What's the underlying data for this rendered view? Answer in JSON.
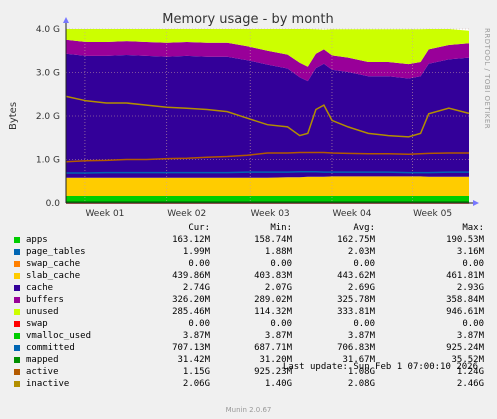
{
  "chart_data": {
    "type": "area",
    "title": "Memory usage - by month",
    "ylabel": "Bytes",
    "side_label": "RRDTOOL / TOBI OETIKER",
    "x_ticks": [
      "Week 01",
      "Week 02",
      "Week 03",
      "Week 04",
      "Week 05"
    ],
    "y_ticks": [
      "0.0",
      "1.0 G",
      "2.0 G",
      "3.0 G",
      "4.0 G"
    ],
    "ylim": [
      0,
      4.0
    ],
    "grid": true,
    "x": [
      0,
      0.05,
      0.1,
      0.15,
      0.2,
      0.25,
      0.3,
      0.35,
      0.4,
      0.45,
      0.5,
      0.55,
      0.58,
      0.6,
      0.62,
      0.64,
      0.66,
      0.7,
      0.75,
      0.8,
      0.85,
      0.88,
      0.9,
      0.95,
      1.0
    ],
    "stack": [
      {
        "name": "apps",
        "color": "#00cc00",
        "values": [
          0.16,
          0.16,
          0.16,
          0.16,
          0.16,
          0.16,
          0.16,
          0.16,
          0.16,
          0.16,
          0.16,
          0.16,
          0.16,
          0.16,
          0.16,
          0.16,
          0.16,
          0.16,
          0.16,
          0.16,
          0.16,
          0.16,
          0.16,
          0.16,
          0.16
        ]
      },
      {
        "name": "page_tables",
        "color": "#0066b3",
        "values": [
          0.002,
          0.002,
          0.002,
          0.002,
          0.002,
          0.002,
          0.002,
          0.002,
          0.002,
          0.002,
          0.002,
          0.002,
          0.002,
          0.002,
          0.002,
          0.002,
          0.002,
          0.002,
          0.002,
          0.002,
          0.002,
          0.002,
          0.002,
          0.002,
          0.002
        ]
      },
      {
        "name": "swap_cache",
        "color": "#ff8000",
        "values": [
          0,
          0,
          0,
          0,
          0,
          0,
          0,
          0,
          0,
          0,
          0,
          0,
          0,
          0,
          0,
          0,
          0,
          0,
          0,
          0,
          0,
          0,
          0,
          0,
          0
        ]
      },
      {
        "name": "slab_cache",
        "color": "#ffcc00",
        "values": [
          0.42,
          0.42,
          0.42,
          0.42,
          0.42,
          0.42,
          0.42,
          0.42,
          0.42,
          0.42,
          0.42,
          0.43,
          0.43,
          0.44,
          0.44,
          0.44,
          0.45,
          0.45,
          0.45,
          0.45,
          0.45,
          0.45,
          0.44,
          0.44,
          0.44
        ]
      },
      {
        "name": "cache",
        "color": "#330099",
        "values": [
          2.85,
          2.8,
          2.8,
          2.82,
          2.8,
          2.78,
          2.8,
          2.78,
          2.78,
          2.7,
          2.6,
          2.5,
          2.3,
          2.2,
          2.5,
          2.6,
          2.45,
          2.4,
          2.3,
          2.3,
          2.25,
          2.3,
          2.6,
          2.7,
          2.74
        ]
      },
      {
        "name": "buffers",
        "color": "#990099",
        "values": [
          0.32,
          0.32,
          0.32,
          0.32,
          0.32,
          0.32,
          0.32,
          0.32,
          0.32,
          0.32,
          0.32,
          0.32,
          0.33,
          0.33,
          0.33,
          0.33,
          0.33,
          0.33,
          0.33,
          0.33,
          0.33,
          0.33,
          0.33,
          0.33,
          0.33
        ]
      },
      {
        "name": "unused",
        "color": "#ccff00",
        "values": [
          0.25,
          0.3,
          0.3,
          0.28,
          0.3,
          0.32,
          0.3,
          0.32,
          0.32,
          0.4,
          0.5,
          0.59,
          0.78,
          0.87,
          0.56,
          0.45,
          0.6,
          0.65,
          0.75,
          0.75,
          0.8,
          0.75,
          0.47,
          0.37,
          0.29
        ]
      }
    ],
    "lines": [
      {
        "name": "swap",
        "color": "#ff0000",
        "values": [
          0,
          0,
          0,
          0,
          0,
          0,
          0,
          0,
          0,
          0,
          0,
          0,
          0,
          0,
          0,
          0,
          0,
          0,
          0,
          0,
          0,
          0,
          0,
          0,
          0
        ]
      },
      {
        "name": "vmalloc_used",
        "color": "#00cc00",
        "values": [
          0.004,
          0.004,
          0.004,
          0.004,
          0.004,
          0.004,
          0.004,
          0.004,
          0.004,
          0.004,
          0.004,
          0.004,
          0.004,
          0.004,
          0.004,
          0.004,
          0.004,
          0.004,
          0.004,
          0.004,
          0.004,
          0.004,
          0.004,
          0.004,
          0.004
        ]
      },
      {
        "name": "committed",
        "color": "#0066b3",
        "values": [
          0.69,
          0.69,
          0.7,
          0.7,
          0.7,
          0.7,
          0.7,
          0.7,
          0.7,
          0.71,
          0.71,
          0.71,
          0.72,
          0.72,
          0.72,
          0.71,
          0.71,
          0.71,
          0.71,
          0.71,
          0.7,
          0.7,
          0.7,
          0.71,
          0.71
        ]
      },
      {
        "name": "mapped",
        "color": "#008f00",
        "values": [
          0.031,
          0.031,
          0.031,
          0.031,
          0.031,
          0.031,
          0.031,
          0.031,
          0.031,
          0.031,
          0.031,
          0.031,
          0.031,
          0.031,
          0.031,
          0.031,
          0.031,
          0.031,
          0.031,
          0.031,
          0.031,
          0.031,
          0.031,
          0.031,
          0.031
        ]
      },
      {
        "name": "active",
        "color": "#b35a00",
        "values": [
          0.95,
          0.97,
          0.98,
          1.0,
          1.0,
          1.02,
          1.03,
          1.05,
          1.07,
          1.1,
          1.15,
          1.15,
          1.16,
          1.16,
          1.16,
          1.16,
          1.15,
          1.14,
          1.13,
          1.13,
          1.12,
          1.13,
          1.14,
          1.15,
          1.15
        ]
      },
      {
        "name": "inactive",
        "color": "#b38f00",
        "values": [
          2.45,
          2.35,
          2.3,
          2.3,
          2.25,
          2.2,
          2.18,
          2.15,
          2.1,
          1.95,
          1.8,
          1.75,
          1.55,
          1.6,
          2.15,
          2.25,
          1.9,
          1.75,
          1.6,
          1.55,
          1.52,
          1.6,
          2.05,
          2.18,
          2.06
        ]
      }
    ]
  },
  "legend": {
    "headers": {
      "cur": "Cur:",
      "min": "Min:",
      "avg": "Avg:",
      "max": "Max:"
    },
    "rows": [
      {
        "name": "apps",
        "color": "#00cc00",
        "cur": "163.12M",
        "min": "158.74M",
        "avg": "162.75M",
        "max": "190.53M"
      },
      {
        "name": "page_tables",
        "color": "#0066b3",
        "cur": "1.99M",
        "min": "1.88M",
        "avg": "2.03M",
        "max": "3.16M"
      },
      {
        "name": "swap_cache",
        "color": "#ff8000",
        "cur": "0.00",
        "min": "0.00",
        "avg": "0.00",
        "max": "0.00"
      },
      {
        "name": "slab_cache",
        "color": "#ffcc00",
        "cur": "439.86M",
        "min": "403.83M",
        "avg": "443.62M",
        "max": "461.81M"
      },
      {
        "name": "cache",
        "color": "#330099",
        "cur": "2.74G",
        "min": "2.07G",
        "avg": "2.69G",
        "max": "2.93G"
      },
      {
        "name": "buffers",
        "color": "#990099",
        "cur": "326.20M",
        "min": "289.02M",
        "avg": "325.78M",
        "max": "358.84M"
      },
      {
        "name": "unused",
        "color": "#ccff00",
        "cur": "285.46M",
        "min": "114.32M",
        "avg": "333.81M",
        "max": "946.61M"
      },
      {
        "name": "swap",
        "color": "#ff0000",
        "cur": "0.00",
        "min": "0.00",
        "avg": "0.00",
        "max": "0.00"
      },
      {
        "name": "vmalloc_used",
        "color": "#00cc00",
        "cur": "3.87M",
        "min": "3.87M",
        "avg": "3.87M",
        "max": "3.87M"
      },
      {
        "name": "committed",
        "color": "#0066b3",
        "cur": "707.13M",
        "min": "687.71M",
        "avg": "706.83M",
        "max": "925.24M"
      },
      {
        "name": "mapped",
        "color": "#008f00",
        "cur": "31.42M",
        "min": "31.20M",
        "avg": "31.67M",
        "max": "35.52M"
      },
      {
        "name": "active",
        "color": "#b35a00",
        "cur": "1.15G",
        "min": "925.23M",
        "avg": "1.08G",
        "max": "1.24G"
      },
      {
        "name": "inactive",
        "color": "#b38f00",
        "cur": "2.06G",
        "min": "1.40G",
        "avg": "2.08G",
        "max": "2.46G"
      }
    ]
  },
  "last_update": "Last update: Sun Feb  1 07:00:10 2026",
  "footer": "Munin 2.0.67"
}
